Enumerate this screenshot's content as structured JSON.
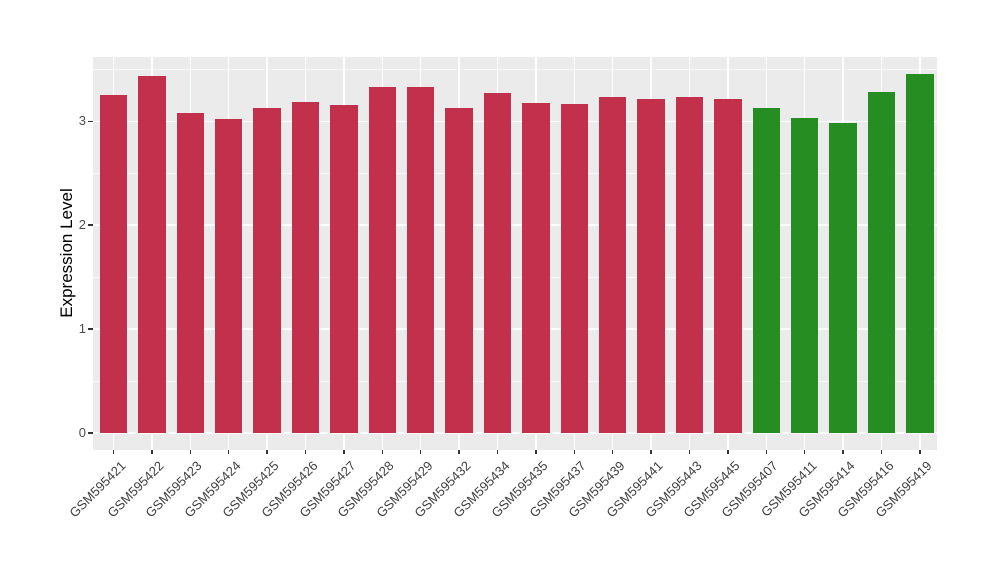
{
  "chart_data": {
    "type": "bar",
    "title": "",
    "xlabel": "",
    "ylabel": "Expression Level",
    "ylim": [
      0,
      3.64
    ],
    "y_ticks": [
      0,
      1,
      2,
      3
    ],
    "y_minor_ticks": [
      0.5,
      1.5,
      2.5,
      3.5
    ],
    "grid": "on",
    "legend_position": "none",
    "categories": [
      "GSM595421",
      "GSM595422",
      "GSM595423",
      "GSM595424",
      "GSM595425",
      "GSM595426",
      "GSM595427",
      "GSM595428",
      "GSM595429",
      "GSM595432",
      "GSM595434",
      "GSM595435",
      "GSM595437",
      "GSM595439",
      "GSM595441",
      "GSM595443",
      "GSM595445",
      "GSM595407",
      "GSM595411",
      "GSM595414",
      "GSM595416",
      "GSM595419"
    ],
    "values": [
      3.25,
      3.44,
      3.08,
      3.02,
      3.13,
      3.19,
      3.16,
      3.33,
      3.33,
      3.13,
      3.27,
      3.18,
      3.17,
      3.23,
      3.21,
      3.23,
      3.21,
      3.13,
      3.03,
      2.98,
      3.28,
      3.46
    ],
    "bar_groups": [
      "red",
      "red",
      "red",
      "red",
      "red",
      "red",
      "red",
      "red",
      "red",
      "red",
      "red",
      "red",
      "red",
      "red",
      "red",
      "red",
      "red",
      "green",
      "green",
      "green",
      "green",
      "green"
    ],
    "group_colors": {
      "red": "#C2304C",
      "green": "#268D23"
    },
    "panel_background": "#EBEBEB",
    "gridline_color": "#FFFFFF"
  }
}
